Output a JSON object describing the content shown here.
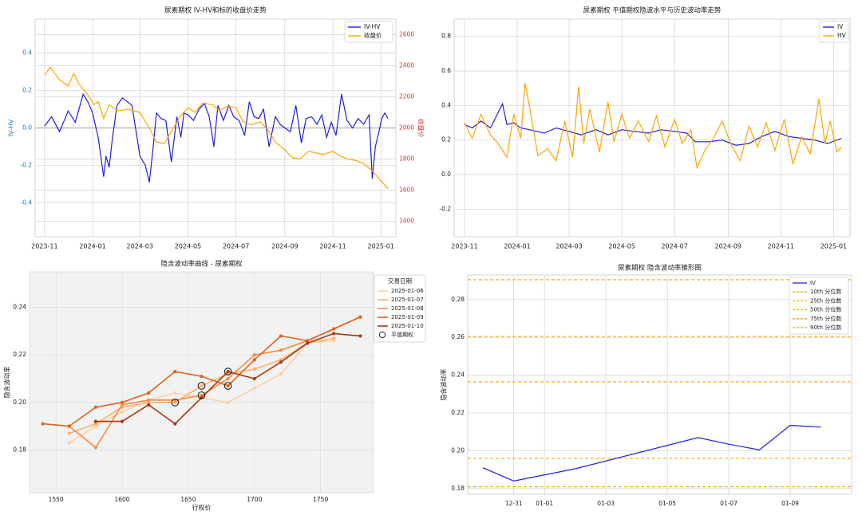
{
  "colors": {
    "iv": "#1f1fd8",
    "hv": "#ffa500",
    "close": "#ffa500",
    "left_axis": "#1f77b4",
    "right_axis": "#e03131",
    "grid": "#d0d0d0",
    "zero": "#b0b0b0",
    "smile": [
      "#fdd0a2",
      "#fdae6b",
      "#f9893b",
      "#e2621a",
      "#a8390a"
    ],
    "cone": "#ffa500"
  },
  "chart_data": [
    {
      "id": "iv_hv_close",
      "type": "line",
      "title": "尿素期权 IV-HV和标的收盘价走势",
      "xlabel": "",
      "ylabel": "IV-HV",
      "ylabel_right": "收盘价",
      "x_range": [
        "2023-10-20",
        "2025-01-20"
      ],
      "x_ticks": [
        "2023-11",
        "2024-01",
        "2024-03",
        "2024-05",
        "2024-07",
        "2024-09",
        "2024-11",
        "2025-01"
      ],
      "ylim": [
        -0.58,
        0.58
      ],
      "y_ticks": [
        -0.4,
        -0.2,
        0.0,
        0.2,
        0.4
      ],
      "ylim_right": [
        1300,
        2700
      ],
      "y_ticks_right": [
        1400,
        1600,
        1800,
        2000,
        2200,
        2400,
        2600
      ],
      "legend": [
        "IV-HV",
        "收盘价"
      ],
      "legend_position": "top-right",
      "series": [
        {
          "name": "IV-HV",
          "axis": "left",
          "x": [
            "2023-11-01",
            "2023-11-10",
            "2023-11-20",
            "2023-12-01",
            "2023-12-10",
            "2023-12-20",
            "2023-12-26",
            "2024-01-01",
            "2024-01-08",
            "2024-01-15",
            "2024-01-18",
            "2024-01-22",
            "2024-01-26",
            "2024-02-01",
            "2024-02-08",
            "2024-02-20",
            "2024-03-01",
            "2024-03-08",
            "2024-03-13",
            "2024-03-18",
            "2024-03-22",
            "2024-03-28",
            "2024-04-03",
            "2024-04-10",
            "2024-04-17",
            "2024-04-22",
            "2024-04-26",
            "2024-05-01",
            "2024-05-08",
            "2024-05-15",
            "2024-05-22",
            "2024-05-28",
            "2024-06-03",
            "2024-06-08",
            "2024-06-15",
            "2024-06-22",
            "2024-06-28",
            "2024-07-05",
            "2024-07-12",
            "2024-07-18",
            "2024-07-24",
            "2024-07-30",
            "2024-08-05",
            "2024-08-12",
            "2024-08-20",
            "2024-08-26",
            "2024-09-01",
            "2024-09-08",
            "2024-09-15",
            "2024-09-22",
            "2024-09-28",
            "2024-10-05",
            "2024-10-12",
            "2024-10-18",
            "2024-10-24",
            "2024-10-30",
            "2024-11-05",
            "2024-11-12",
            "2024-11-19",
            "2024-11-26",
            "2024-12-03",
            "2024-12-10",
            "2024-12-17",
            "2024-12-21",
            "2024-12-25",
            "2024-12-29",
            "2025-01-02",
            "2025-01-06",
            "2025-01-10"
          ],
          "values": [
            0.01,
            0.06,
            -0.02,
            0.09,
            0.03,
            0.18,
            0.14,
            0.08,
            -0.05,
            -0.26,
            -0.15,
            -0.21,
            -0.06,
            0.12,
            0.16,
            0.12,
            -0.15,
            -0.2,
            -0.29,
            -0.1,
            0.08,
            0.05,
            0.04,
            -0.18,
            0.06,
            -0.05,
            0.08,
            0.07,
            0.04,
            0.1,
            0.13,
            0.06,
            -0.1,
            0.12,
            0.04,
            0.12,
            0.06,
            0.04,
            -0.04,
            0.14,
            0.06,
            0.05,
            0.1,
            -0.1,
            0.06,
            0.02,
            0.0,
            -0.02,
            0.12,
            -0.08,
            0.05,
            0.06,
            0.02,
            0.07,
            -0.05,
            0.03,
            -0.04,
            0.18,
            0.04,
            0.0,
            0.05,
            0.02,
            0.07,
            -0.27,
            -0.1,
            -0.03,
            0.05,
            0.08,
            0.05
          ]
        },
        {
          "name": "收盘价",
          "axis": "right",
          "x": [
            "2023-11-01",
            "2023-11-08",
            "2023-11-20",
            "2023-12-01",
            "2023-12-08",
            "2023-12-15",
            "2023-12-25",
            "2024-01-03",
            "2024-01-08",
            "2024-01-15",
            "2024-01-22",
            "2024-02-01",
            "2024-02-15",
            "2024-03-01",
            "2024-03-08",
            "2024-03-15",
            "2024-03-22",
            "2024-04-01",
            "2024-04-08",
            "2024-04-15",
            "2024-04-22",
            "2024-05-01",
            "2024-05-10",
            "2024-05-20",
            "2024-06-01",
            "2024-06-10",
            "2024-06-20",
            "2024-07-01",
            "2024-07-10",
            "2024-07-20",
            "2024-08-01",
            "2024-08-10",
            "2024-08-20",
            "2024-09-01",
            "2024-09-10",
            "2024-09-20",
            "2024-10-01",
            "2024-10-10",
            "2024-10-20",
            "2024-11-01",
            "2024-11-10",
            "2024-11-20",
            "2024-12-01",
            "2024-12-10",
            "2024-12-20",
            "2025-01-01",
            "2025-01-10"
          ],
          "values": [
            2340,
            2390,
            2310,
            2270,
            2350,
            2280,
            2220,
            2150,
            2170,
            2060,
            2150,
            2110,
            2120,
            2100,
            2040,
            1980,
            1910,
            1900,
            1960,
            2020,
            2080,
            2130,
            2100,
            2160,
            2150,
            2110,
            2140,
            2130,
            2040,
            2020,
            2040,
            1990,
            1910,
            1860,
            1810,
            1800,
            1850,
            1840,
            1830,
            1850,
            1820,
            1800,
            1790,
            1770,
            1730,
            1660,
            1610
          ]
        }
      ]
    },
    {
      "id": "atm_iv_hv",
      "type": "line",
      "title": "尿素期权 平值期权隐波水平与历史波动率走势",
      "xlabel": "",
      "ylabel": "",
      "x_range": [
        "2023-10-20",
        "2025-01-20"
      ],
      "x_ticks": [
        "2023-11",
        "2024-01",
        "2024-03",
        "2024-05",
        "2024-07",
        "2024-09",
        "2024-11",
        "2025-01"
      ],
      "ylim": [
        -0.36,
        0.9
      ],
      "y_ticks": [
        -0.2,
        0.0,
        0.2,
        0.4,
        0.6,
        0.8
      ],
      "legend": [
        "IV",
        "HV"
      ],
      "legend_position": "top-right",
      "series": [
        {
          "name": "IV",
          "x": [
            "2023-11-01",
            "2023-11-10",
            "2023-11-20",
            "2023-12-01",
            "2023-12-10",
            "2023-12-15",
            "2023-12-20",
            "2023-12-28",
            "2024-01-05",
            "2024-01-15",
            "2024-02-01",
            "2024-02-15",
            "2024-03-01",
            "2024-03-15",
            "2024-04-01",
            "2024-04-15",
            "2024-05-01",
            "2024-05-15",
            "2024-06-01",
            "2024-06-15",
            "2024-07-01",
            "2024-07-15",
            "2024-07-25",
            "2024-08-10",
            "2024-08-25",
            "2024-09-10",
            "2024-09-25",
            "2024-10-10",
            "2024-10-25",
            "2024-11-10",
            "2024-11-25",
            "2024-12-10",
            "2024-12-25",
            "2025-01-10"
          ],
          "values": [
            0.29,
            0.27,
            0.31,
            0.27,
            0.36,
            0.41,
            0.29,
            0.3,
            0.27,
            0.26,
            0.24,
            0.27,
            0.25,
            0.23,
            0.26,
            0.23,
            0.26,
            0.25,
            0.24,
            0.26,
            0.25,
            0.24,
            0.19,
            0.19,
            0.2,
            0.17,
            0.18,
            0.22,
            0.25,
            0.22,
            0.21,
            0.2,
            0.18,
            0.21
          ]
        },
        {
          "name": "HV",
          "x": [
            "2023-11-01",
            "2023-11-10",
            "2023-11-20",
            "2023-12-01",
            "2023-12-10",
            "2023-12-20",
            "2023-12-28",
            "2024-01-05",
            "2024-01-10",
            "2024-01-15",
            "2024-01-25",
            "2024-02-05",
            "2024-02-15",
            "2024-02-25",
            "2024-03-05",
            "2024-03-12",
            "2024-03-18",
            "2024-03-25",
            "2024-04-05",
            "2024-04-15",
            "2024-04-22",
            "2024-05-01",
            "2024-05-10",
            "2024-05-20",
            "2024-06-01",
            "2024-06-10",
            "2024-06-20",
            "2024-07-01",
            "2024-07-10",
            "2024-07-20",
            "2024-07-27",
            "2024-08-05",
            "2024-08-15",
            "2024-08-25",
            "2024-09-05",
            "2024-09-15",
            "2024-09-25",
            "2024-10-05",
            "2024-10-15",
            "2024-10-25",
            "2024-11-05",
            "2024-11-15",
            "2024-11-25",
            "2024-12-05",
            "2024-12-15",
            "2024-12-22",
            "2024-12-28",
            "2025-01-05",
            "2025-01-10"
          ],
          "values": [
            0.3,
            0.21,
            0.35,
            0.23,
            0.18,
            0.1,
            0.35,
            0.21,
            0.53,
            0.4,
            0.11,
            0.15,
            0.08,
            0.31,
            0.1,
            0.51,
            0.18,
            0.38,
            0.13,
            0.42,
            0.19,
            0.35,
            0.21,
            0.31,
            0.19,
            0.34,
            0.16,
            0.32,
            0.18,
            0.26,
            0.04,
            0.14,
            0.21,
            0.31,
            0.17,
            0.08,
            0.28,
            0.16,
            0.3,
            0.14,
            0.32,
            0.06,
            0.22,
            0.12,
            0.44,
            0.18,
            0.31,
            0.13,
            0.16
          ]
        }
      ]
    },
    {
      "id": "vol_smile",
      "type": "line",
      "title": "隐含波动率曲线 - 尿素期权",
      "xlabel": "行权价",
      "ylabel": "隐含波动率",
      "xlim": [
        1530,
        1790
      ],
      "x_ticks": [
        1550,
        1600,
        1650,
        1700,
        1750
      ],
      "ylim": [
        0.162,
        0.255
      ],
      "y_ticks": [
        0.18,
        0.2,
        0.22,
        0.24
      ],
      "legend_title": "交易日期",
      "legend": [
        "2025-01-06",
        "2025-01-07",
        "2025-01-08",
        "2025-01-09",
        "2025-01-10",
        "平值期权"
      ],
      "legend_position": "top-right",
      "series": [
        {
          "name": "2025-01-06",
          "x": [
            1560,
            1580,
            1600,
            1620,
            1640,
            1660,
            1680,
            1700,
            1720,
            1740,
            1760
          ],
          "values": [
            0.183,
            0.19,
            0.196,
            0.201,
            0.204,
            0.202,
            0.2,
            0.206,
            0.212,
            0.225,
            0.226
          ]
        },
        {
          "name": "2025-01-07",
          "x": [
            1560,
            1580,
            1600,
            1620,
            1640,
            1660,
            1680,
            1700,
            1720,
            1740,
            1760
          ],
          "values": [
            0.187,
            0.191,
            0.198,
            0.2,
            0.2,
            0.207,
            0.212,
            0.214,
            0.218,
            0.225,
            0.227
          ]
        },
        {
          "name": "2025-01-08",
          "x": [
            1560,
            1580,
            1600,
            1620,
            1640,
            1660,
            1680,
            1700,
            1720,
            1740,
            1760,
            1780
          ],
          "values": [
            0.19,
            0.181,
            0.199,
            0.201,
            0.201,
            0.203,
            0.21,
            0.22,
            0.222,
            0.226,
            0.231,
            0.236
          ]
        },
        {
          "name": "2025-01-09",
          "x": [
            1540,
            1560,
            1580,
            1600,
            1620,
            1640,
            1660,
            1680,
            1700,
            1720,
            1740,
            1760,
            1780
          ],
          "values": [
            0.191,
            0.19,
            0.198,
            0.2,
            0.204,
            0.213,
            0.211,
            0.207,
            0.218,
            0.228,
            0.226,
            0.231,
            0.236
          ]
        },
        {
          "name": "2025-01-10",
          "x": [
            1580,
            1600,
            1620,
            1640,
            1660,
            1680,
            1700,
            1720,
            1740,
            1760,
            1780
          ],
          "values": [
            0.192,
            0.192,
            0.199,
            0.191,
            0.202,
            0.213,
            0.21,
            0.217,
            0.225,
            0.229,
            0.228
          ]
        }
      ],
      "atm_points": [
        {
          "x": 1640,
          "y": 0.2
        },
        {
          "x": 1660,
          "y": 0.207
        },
        {
          "x": 1660,
          "y": 0.203
        },
        {
          "x": 1680,
          "y": 0.213
        },
        {
          "x": 1680,
          "y": 0.207
        }
      ]
    },
    {
      "id": "vol_cone",
      "type": "line",
      "title": "尿素期权 隐含波动率锥形图",
      "xlabel": "",
      "ylabel": "隐含波动率",
      "xlim": [
        "2024-12-29 12:00",
        "2025-01-11 00:00"
      ],
      "x_ticks": [
        "12-31",
        "01-01",
        "01-03",
        "01-05",
        "01-07",
        "01-09"
      ],
      "x_tick_dates": [
        "2024-12-31",
        "2025-01-01",
        "2025-01-03",
        "2025-01-05",
        "2025-01-07",
        "2025-01-09"
      ],
      "ylim": [
        0.177,
        0.293
      ],
      "y_ticks": [
        0.18,
        0.2,
        0.22,
        0.24,
        0.26,
        0.28
      ],
      "legend": [
        "IV",
        "10th 分位数",
        "25th 分位数",
        "50th 分位数",
        "75th 分位数",
        "90th 分位数"
      ],
      "legend_position": "top-right",
      "series": [
        {
          "name": "IV",
          "x": [
            "2024-12-30",
            "2024-12-31",
            "2025-01-02",
            "2025-01-06",
            "2025-01-07",
            "2025-01-08",
            "2025-01-09",
            "2025-01-10"
          ],
          "values": [
            0.191,
            0.184,
            0.1905,
            0.207,
            0.2035,
            0.2005,
            0.2135,
            0.2125
          ]
        }
      ],
      "percentiles": [
        {
          "name": "10th 分位数",
          "value": 0.181
        },
        {
          "name": "25th 分位数",
          "value": 0.196
        },
        {
          "name": "50th 分位数",
          "value": 0.2365
        },
        {
          "name": "75th 分位数",
          "value": 0.2605
        },
        {
          "name": "90th 分位数",
          "value": 0.2905
        }
      ]
    }
  ]
}
